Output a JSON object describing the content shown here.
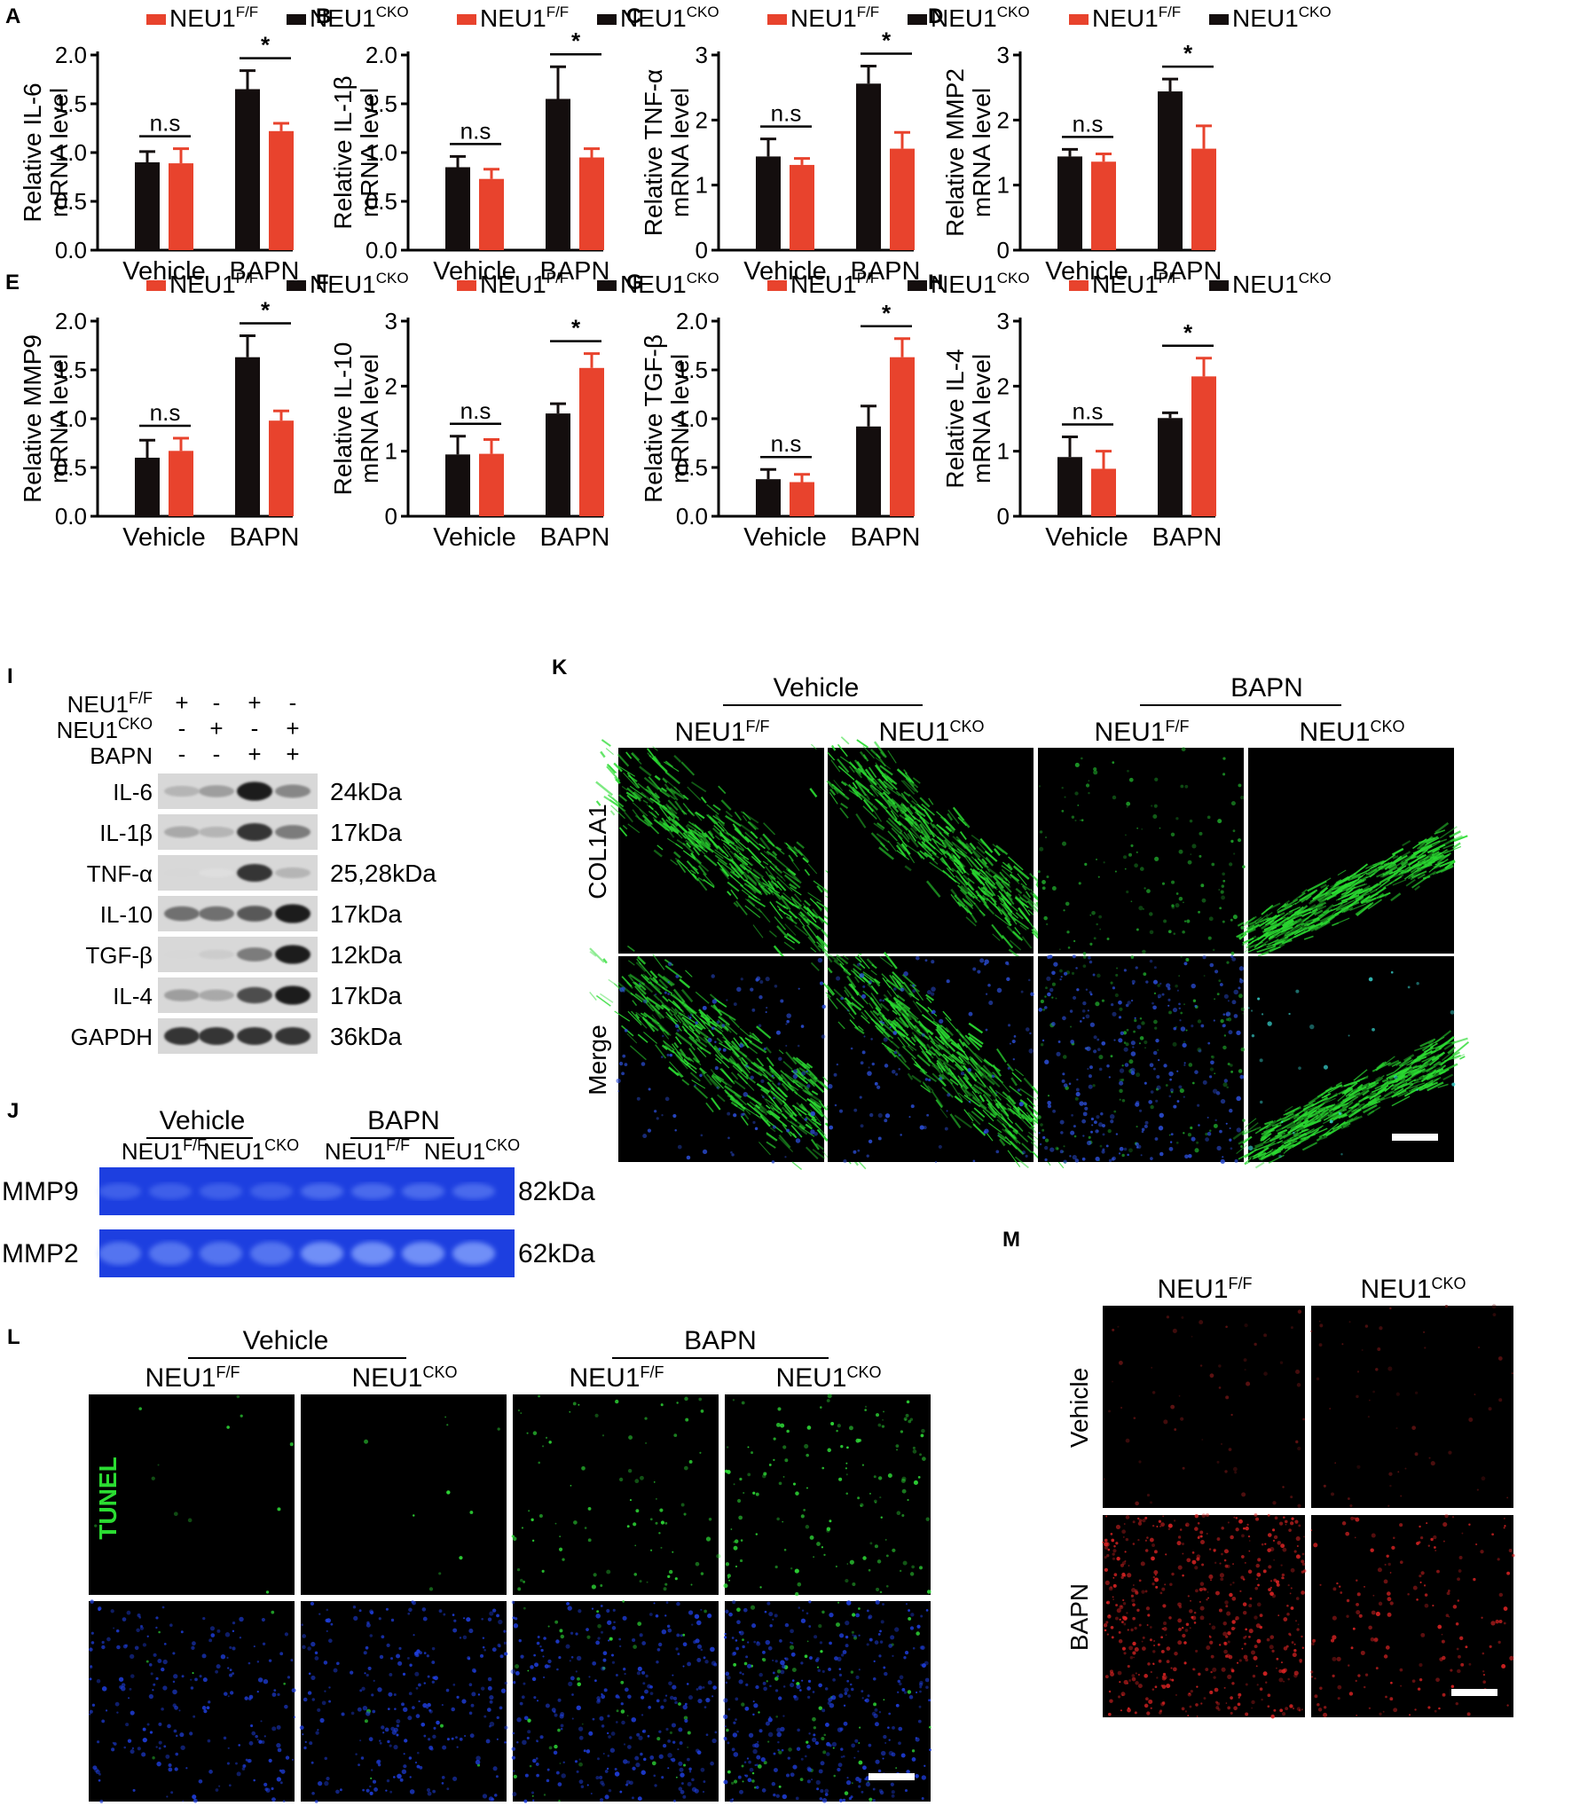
{
  "colors": {
    "f": "#e8432d",
    "cko": "#140e0e"
  },
  "legend": {
    "f": "NEU1",
    "f_sup": "F/F",
    "cko": "NEU1",
    "cko_sup": "CKO"
  },
  "chart_data": [
    {
      "panel": "A",
      "type": "bar",
      "ylabel1": "Relative IL-6",
      "ylabel2": "mRNA level",
      "ylim": [
        0,
        2.0
      ],
      "yticks": [
        "0.0",
        "0.5",
        "1.0",
        "1.5",
        "2.0"
      ],
      "categories": [
        "Vehicle",
        "BAPN"
      ],
      "legend_first": "f",
      "series": [
        {
          "name": "NEU1F/F",
          "values": [
            0.89,
            1.22
          ],
          "errors": [
            0.15,
            0.08
          ]
        },
        {
          "name": "NEU1CKO",
          "values": [
            0.9,
            1.65
          ],
          "errors": [
            0.11,
            0.19
          ]
        }
      ],
      "annotations": [
        {
          "text": "n.s",
          "group": 0
        },
        {
          "text": "*",
          "group": 1
        }
      ]
    },
    {
      "panel": "B",
      "type": "bar",
      "ylabel1": "Relative IL-1β",
      "ylabel2": "mRNA level",
      "ylim": [
        0,
        2.0
      ],
      "yticks": [
        "0.0",
        "0.5",
        "1.0",
        "1.5",
        "2.0"
      ],
      "categories": [
        "Vehicle",
        "BAPN"
      ],
      "legend_first": "f",
      "series": [
        {
          "name": "NEU1F/F",
          "values": [
            0.73,
            0.95
          ],
          "errors": [
            0.1,
            0.09
          ]
        },
        {
          "name": "NEU1CKO",
          "values": [
            0.85,
            1.55
          ],
          "errors": [
            0.11,
            0.33
          ]
        }
      ],
      "annotations": [
        {
          "text": "n.s",
          "group": 0
        },
        {
          "text": "*",
          "group": 1
        }
      ]
    },
    {
      "panel": "C",
      "type": "bar",
      "ylabel1": "Relative TNF-α",
      "ylabel2": "mRNA level",
      "ylim": [
        0,
        3
      ],
      "yticks": [
        "0",
        "1",
        "2",
        "3"
      ],
      "categories": [
        "Vehicle",
        "BAPN"
      ],
      "legend_first": "f",
      "series": [
        {
          "name": "NEU1F/F",
          "values": [
            1.31,
            1.56
          ],
          "errors": [
            0.1,
            0.25
          ]
        },
        {
          "name": "NEU1CKO",
          "values": [
            1.44,
            2.56
          ],
          "errors": [
            0.27,
            0.27
          ]
        }
      ],
      "annotations": [
        {
          "text": "n.s",
          "group": 0
        },
        {
          "text": "*",
          "group": 1
        }
      ]
    },
    {
      "panel": "D",
      "type": "bar",
      "ylabel1": "Relative MMP2",
      "ylabel2": "mRNA level",
      "ylim": [
        0,
        3
      ],
      "yticks": [
        "0",
        "1",
        "2",
        "3"
      ],
      "categories": [
        "Vehicle",
        "BAPN"
      ],
      "legend_first": "f",
      "series": [
        {
          "name": "NEU1F/F",
          "values": [
            1.36,
            1.56
          ],
          "errors": [
            0.12,
            0.35
          ]
        },
        {
          "name": "NEU1CKO",
          "values": [
            1.44,
            2.44
          ],
          "errors": [
            0.11,
            0.19
          ]
        }
      ],
      "annotations": [
        {
          "text": "n.s",
          "group": 0
        },
        {
          "text": "*",
          "group": 1
        }
      ]
    },
    {
      "panel": "E",
      "type": "bar",
      "ylabel1": "Relative MMP9",
      "ylabel2": "mRNA level",
      "ylim": [
        0,
        2.0
      ],
      "yticks": [
        "0.0",
        "0.5",
        "1.0",
        "1.5",
        "2.0"
      ],
      "categories": [
        "Vehicle",
        "BAPN"
      ],
      "legend_first": "f",
      "series": [
        {
          "name": "NEU1F/F",
          "values": [
            0.67,
            0.98
          ],
          "errors": [
            0.13,
            0.1
          ]
        },
        {
          "name": "NEU1CKO",
          "values": [
            0.6,
            1.63
          ],
          "errors": [
            0.18,
            0.22
          ]
        }
      ],
      "annotations": [
        {
          "text": "n.s",
          "group": 0
        },
        {
          "text": "*",
          "group": 1
        }
      ]
    },
    {
      "panel": "F",
      "type": "bar",
      "ylabel1": "Relative IL-10",
      "ylabel2": "mRNA level",
      "ylim": [
        0,
        3
      ],
      "yticks": [
        "0",
        "1",
        "2",
        "3"
      ],
      "categories": [
        "Vehicle",
        "BAPN"
      ],
      "legend_first": "f",
      "series": [
        {
          "name": "NEU1F/F",
          "values": [
            0.96,
            2.28
          ],
          "errors": [
            0.22,
            0.22
          ]
        },
        {
          "name": "NEU1CKO",
          "values": [
            0.95,
            1.58
          ],
          "errors": [
            0.28,
            0.15
          ]
        }
      ],
      "annotations": [
        {
          "text": "n.s",
          "group": 0
        },
        {
          "text": "*",
          "group": 1
        }
      ]
    },
    {
      "panel": "G",
      "type": "bar",
      "ylabel1": "Relative TGF-β",
      "ylabel2": "mRNA level",
      "ylim": [
        0,
        2.0
      ],
      "yticks": [
        "0.0",
        "0.5",
        "1.0",
        "1.5",
        "2.0"
      ],
      "categories": [
        "Vehicle",
        "BAPN"
      ],
      "legend_first": "f",
      "series": [
        {
          "name": "NEU1F/F",
          "values": [
            0.35,
            1.63
          ],
          "errors": [
            0.08,
            0.19
          ]
        },
        {
          "name": "NEU1CKO",
          "values": [
            0.38,
            0.92
          ],
          "errors": [
            0.1,
            0.21
          ]
        }
      ],
      "annotations": [
        {
          "text": "n.s",
          "group": 0
        },
        {
          "text": "*",
          "group": 1
        }
      ]
    },
    {
      "panel": "H",
      "type": "bar",
      "ylabel1": "Relative IL-4",
      "ylabel2": "mRNA level",
      "ylim": [
        0,
        3
      ],
      "yticks": [
        "0",
        "1",
        "2",
        "3"
      ],
      "categories": [
        "Vehicle",
        "BAPN"
      ],
      "legend_first": "f",
      "series": [
        {
          "name": "NEU1F/F",
          "values": [
            0.73,
            2.15
          ],
          "errors": [
            0.27,
            0.28
          ]
        },
        {
          "name": "NEU1CKO",
          "values": [
            0.91,
            1.51
          ],
          "errors": [
            0.31,
            0.08
          ]
        }
      ],
      "annotations": [
        {
          "text": "n.s",
          "group": 0
        },
        {
          "text": "*",
          "group": 1
        }
      ]
    }
  ],
  "western_i": {
    "label": "I",
    "conditions": [
      {
        "label": "NEU1",
        "sup": "F/F",
        "marks": [
          "+",
          "-",
          "+",
          "-"
        ]
      },
      {
        "label": "NEU1",
        "sup": "CKO",
        "marks": [
          "-",
          "+",
          "-",
          "+"
        ]
      },
      {
        "label": "BAPN",
        "sup": "",
        "marks": [
          "-",
          "-",
          "+",
          "+"
        ]
      }
    ],
    "bands": [
      {
        "name": "IL-6",
        "kda": "24kDa",
        "intensity": [
          0.3,
          0.4,
          0.95,
          0.5
        ]
      },
      {
        "name": "IL-1β",
        "kda": "17kDa",
        "intensity": [
          0.35,
          0.3,
          0.85,
          0.55
        ]
      },
      {
        "name": "TNF-α",
        "kda": "25,28kDa",
        "intensity": [
          0.15,
          0.12,
          0.85,
          0.3
        ]
      },
      {
        "name": "IL-10",
        "kda": "17kDa",
        "intensity": [
          0.6,
          0.6,
          0.7,
          0.95
        ]
      },
      {
        "name": "TGF-β",
        "kda": "12kDa",
        "intensity": [
          0.15,
          0.2,
          0.55,
          0.95
        ]
      },
      {
        "name": "IL-4",
        "kda": "17kDa",
        "intensity": [
          0.4,
          0.35,
          0.75,
          0.95
        ]
      },
      {
        "name": "GAPDH",
        "kda": "36kDa",
        "intensity": [
          0.85,
          0.85,
          0.85,
          0.85
        ]
      }
    ]
  },
  "zymo_j": {
    "label": "J",
    "groups": [
      "Vehicle",
      "BAPN"
    ],
    "subs": [
      {
        "label": "NEU1",
        "sup": "F/F"
      },
      {
        "label": "NEU1",
        "sup": "CKO"
      },
      {
        "label": "NEU1",
        "sup": "F/F"
      },
      {
        "label": "NEU1",
        "sup": "CKO"
      }
    ],
    "rows": [
      {
        "name": "MMP9",
        "kda": "82kDa"
      },
      {
        "name": "MMP2",
        "kda": "62kDa"
      }
    ]
  },
  "if_k": {
    "label": "K",
    "groups": [
      "Vehicle",
      "BAPN"
    ],
    "cols": [
      {
        "label": "NEU1",
        "sup": "F/F"
      },
      {
        "label": "NEU1",
        "sup": "CKO"
      },
      {
        "label": "NEU1",
        "sup": "F/F"
      },
      {
        "label": "NEU1",
        "sup": "CKO"
      }
    ],
    "rows": [
      "COL1A1",
      "Merge"
    ]
  },
  "if_l": {
    "label": "L",
    "groups": [
      "Vehicle",
      "BAPN"
    ],
    "cols": [
      {
        "label": "NEU1",
        "sup": "F/F"
      },
      {
        "label": "NEU1",
        "sup": "CKO"
      },
      {
        "label": "NEU1",
        "sup": "F/F"
      },
      {
        "label": "NEU1",
        "sup": "CKO"
      }
    ],
    "rows": [
      "TUNEL",
      "Merge"
    ]
  },
  "if_m": {
    "label": "M",
    "cols": [
      {
        "label": "NEU1",
        "sup": "F/F"
      },
      {
        "label": "NEU1",
        "sup": "CKO"
      }
    ],
    "rows": [
      "Vehicle",
      "BAPN"
    ]
  }
}
